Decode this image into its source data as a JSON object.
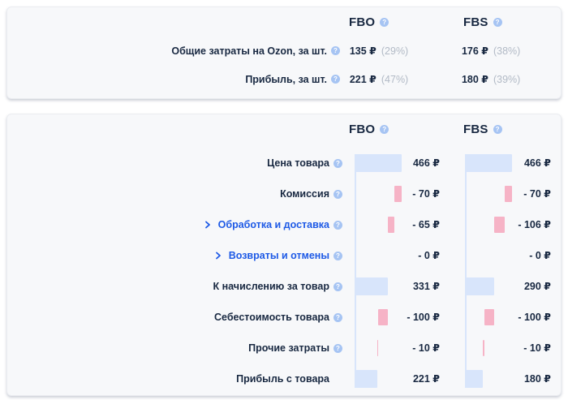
{
  "summary_card": {
    "columns": [
      {
        "label": "FBO"
      },
      {
        "label": "FBS"
      }
    ],
    "rows": [
      {
        "label": "Общие затраты на Ozon, за шт.",
        "help": true,
        "values": [
          {
            "amount": "135 ₽",
            "percent": "(29%)"
          },
          {
            "amount": "176 ₽",
            "percent": "(38%)"
          }
        ]
      },
      {
        "label": "Прибыль, за шт.",
        "help": true,
        "values": [
          {
            "amount": "221 ₽",
            "percent": "(47%)"
          },
          {
            "amount": "180 ₽",
            "percent": "(39%)"
          }
        ]
      }
    ]
  },
  "breakdown_card": {
    "columns": [
      {
        "label": "FBO"
      },
      {
        "label": "FBS"
      }
    ],
    "chart_data": {
      "type": "bar",
      "subtype": "horizontal-waterfall",
      "total_rub": 466,
      "series_names": [
        "FBO",
        "FBS"
      ],
      "rows": [
        {
          "label": "Цена товара",
          "help": true,
          "expandable": false,
          "fbo": {
            "text": "466 ₽",
            "value": 466,
            "from": 0,
            "to": 466,
            "kind": "blue"
          },
          "fbs": {
            "text": "466 ₽",
            "value": 466,
            "from": 0,
            "to": 466,
            "kind": "blue"
          }
        },
        {
          "label": "Комиссия",
          "help": true,
          "expandable": false,
          "fbo": {
            "text": "- 70 ₽",
            "value": -70,
            "from": 396,
            "to": 466,
            "kind": "pink"
          },
          "fbs": {
            "text": "- 70 ₽",
            "value": -70,
            "from": 396,
            "to": 466,
            "kind": "pink"
          }
        },
        {
          "label": "Обработка и доставка",
          "help": true,
          "expandable": true,
          "fbo": {
            "text": "- 65 ₽",
            "value": -65,
            "from": 331,
            "to": 396,
            "kind": "pink"
          },
          "fbs": {
            "text": "- 106 ₽",
            "value": -106,
            "from": 290,
            "to": 396,
            "kind": "pink"
          }
        },
        {
          "label": "Возвраты и отмены",
          "help": true,
          "expandable": true,
          "fbo": {
            "text": "- 0 ₽",
            "value": 0,
            "from": 331,
            "to": 331,
            "kind": "pink"
          },
          "fbs": {
            "text": "- 0 ₽",
            "value": 0,
            "from": 290,
            "to": 290,
            "kind": "pink"
          }
        },
        {
          "label": "К начислению за товар",
          "help": true,
          "expandable": false,
          "fbo": {
            "text": "331 ₽",
            "value": 331,
            "from": 0,
            "to": 331,
            "kind": "blue"
          },
          "fbs": {
            "text": "290 ₽",
            "value": 290,
            "from": 0,
            "to": 290,
            "kind": "blue"
          }
        },
        {
          "label": "Себестоимость товара",
          "help": true,
          "expandable": false,
          "fbo": {
            "text": "- 100 ₽",
            "value": -100,
            "from": 231,
            "to": 331,
            "kind": "pink"
          },
          "fbs": {
            "text": "- 100 ₽",
            "value": -100,
            "from": 190,
            "to": 290,
            "kind": "pink"
          }
        },
        {
          "label": "Прочие затраты",
          "help": true,
          "expandable": false,
          "fbo": {
            "text": "- 10 ₽",
            "value": -10,
            "from": 221,
            "to": 231,
            "kind": "pink"
          },
          "fbs": {
            "text": "- 10 ₽",
            "value": -10,
            "from": 180,
            "to": 190,
            "kind": "pink"
          }
        },
        {
          "label": "Прибыль с товара",
          "help": false,
          "expandable": false,
          "fbo": {
            "text": "221 ₽",
            "value": 221,
            "from": 0,
            "to": 221,
            "kind": "blue"
          },
          "fbs": {
            "text": "180 ₽",
            "value": 180,
            "from": 0,
            "to": 180,
            "kind": "blue"
          }
        }
      ]
    }
  },
  "colors": {
    "card_bg": "#f7f8fa",
    "text_dark": "#182841",
    "text_gray": "#b2bac6",
    "link_blue": "#1e5ae6",
    "bar_blue": "#d8e5fb",
    "bar_pink": "#f6b3c6",
    "help_icon_bg": "#a6c4f3"
  },
  "icons": {
    "help": "?"
  }
}
